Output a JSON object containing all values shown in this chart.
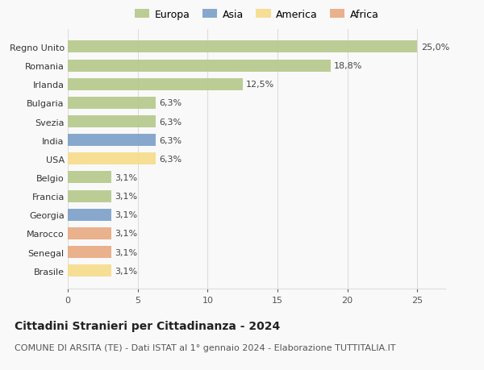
{
  "categories": [
    "Regno Unito",
    "Romania",
    "Irlanda",
    "Bulgaria",
    "Svezia",
    "India",
    "USA",
    "Belgio",
    "Francia",
    "Georgia",
    "Marocco",
    "Senegal",
    "Brasile"
  ],
  "values": [
    25.0,
    18.8,
    12.5,
    6.3,
    6.3,
    6.3,
    6.3,
    3.1,
    3.1,
    3.1,
    3.1,
    3.1,
    3.1
  ],
  "labels": [
    "25,0%",
    "18,8%",
    "12,5%",
    "6,3%",
    "6,3%",
    "6,3%",
    "6,3%",
    "3,1%",
    "3,1%",
    "3,1%",
    "3,1%",
    "3,1%",
    "3,1%"
  ],
  "continents": [
    "Europa",
    "Europa",
    "Europa",
    "Europa",
    "Europa",
    "Asia",
    "America",
    "Europa",
    "Europa",
    "Asia",
    "Africa",
    "Africa",
    "America"
  ],
  "colors": {
    "Europa": "#b5c98a",
    "Asia": "#7b9fc7",
    "America": "#f7dc8a",
    "Africa": "#e8aa80"
  },
  "xlim": [
    0,
    27
  ],
  "xticks": [
    0,
    5,
    10,
    15,
    20,
    25
  ],
  "title": "Cittadini Stranieri per Cittadinanza - 2024",
  "subtitle": "COMUNE DI ARSITA (TE) - Dati ISTAT al 1° gennaio 2024 - Elaborazione TUTTITALIA.IT",
  "background_color": "#f9f9f9",
  "grid_color": "#dddddd",
  "title_fontsize": 10,
  "subtitle_fontsize": 8,
  "label_fontsize": 8,
  "tick_fontsize": 8,
  "legend_fontsize": 9
}
